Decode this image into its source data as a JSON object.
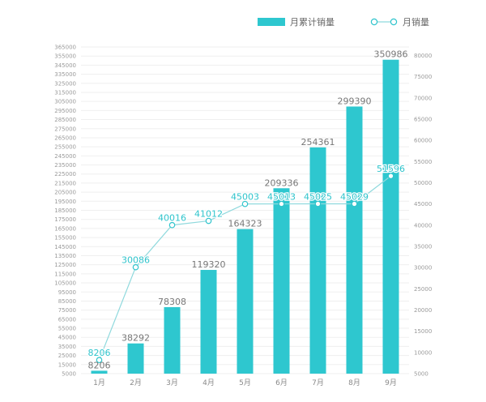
{
  "chart_data": {
    "type": "bar",
    "categories": [
      "1月",
      "2月",
      "3月",
      "4月",
      "5月",
      "6月",
      "7月",
      "8月",
      "9月"
    ],
    "series": [
      {
        "name": "月累计销量",
        "type": "bar",
        "axis": "left",
        "color": "#2ec7cf",
        "values": [
          8206,
          38292,
          78308,
          119320,
          164323,
          209336,
          254361,
          299390,
          350986
        ]
      },
      {
        "name": "月销量",
        "type": "line",
        "axis": "right",
        "color": "#2fc4cc",
        "values": [
          8206,
          30086,
          40016,
          41012,
          45003,
          45013,
          45025,
          45029,
          51596
        ]
      }
    ],
    "y_left": {
      "min": 5000,
      "max": 365000,
      "step": 10000,
      "ticks": [
        "5000",
        "15000",
        "25000",
        "35000",
        "45000",
        "55000",
        "65000",
        "75000",
        "85000",
        "95000",
        "105000",
        "115000",
        "125000",
        "135000",
        "145000",
        "155000",
        "165000",
        "175000",
        "185000",
        "195000",
        "205000",
        "215000",
        "225000",
        "235000",
        "245000",
        "255000",
        "265000",
        "275000",
        "285000",
        "295000",
        "305000",
        "315000",
        "325000",
        "335000",
        "345000",
        "355000",
        "365000"
      ]
    },
    "y_right": {
      "min": 5000,
      "max": 82000,
      "step": 5000,
      "ticks": [
        "5000",
        "10000",
        "15000",
        "20000",
        "25000",
        "30000",
        "35000",
        "40000",
        "45000",
        "50000",
        "55000",
        "60000",
        "65000",
        "70000",
        "75000",
        "80000"
      ]
    },
    "grid": true,
    "legend_position": "top-right",
    "title": "",
    "xlabel": "",
    "ylabel": ""
  }
}
